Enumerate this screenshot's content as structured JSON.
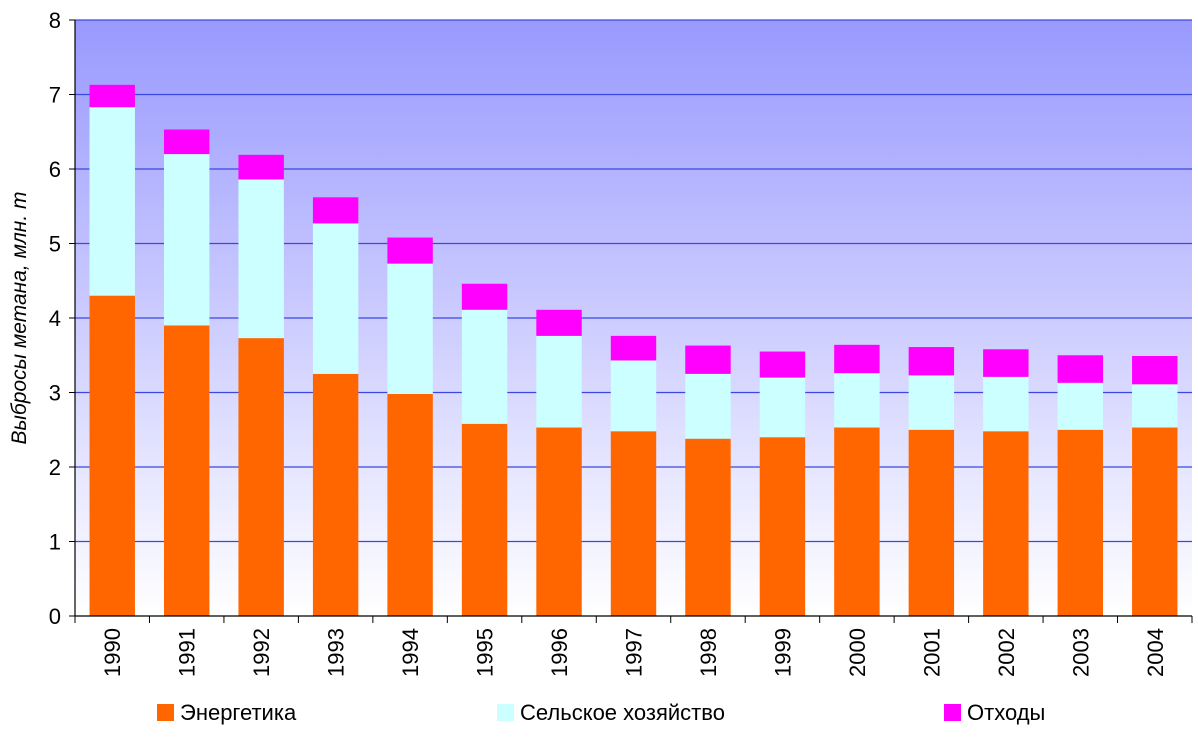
{
  "chart_data": {
    "type": "bar",
    "stacked": true,
    "categories": [
      "1990",
      "1991",
      "1992",
      "1993",
      "1994",
      "1995",
      "1996",
      "1997",
      "1998",
      "1999",
      "2000",
      "2001",
      "2002",
      "2003",
      "2004"
    ],
    "series": [
      {
        "name": "Энергетика",
        "color": "#ff6600",
        "values": [
          4.3,
          3.9,
          3.73,
          3.25,
          2.98,
          2.58,
          2.53,
          2.48,
          2.38,
          2.4,
          2.53,
          2.5,
          2.48,
          2.5,
          2.53
        ]
      },
      {
        "name": "Сельское хозяйство",
        "color": "#ccffff",
        "values": [
          2.53,
          2.3,
          2.13,
          2.02,
          1.75,
          1.53,
          1.23,
          0.95,
          0.87,
          0.8,
          0.73,
          0.73,
          0.73,
          0.63,
          0.58
        ]
      },
      {
        "name": "Отходы",
        "color": "#ff00ff",
        "values": [
          0.3,
          0.33,
          0.33,
          0.35,
          0.35,
          0.35,
          0.35,
          0.33,
          0.38,
          0.35,
          0.38,
          0.38,
          0.37,
          0.37,
          0.38
        ]
      }
    ],
    "ylabel": "Выбросы метана, млн. т",
    "xlabel": "",
    "ylim": [
      0,
      8
    ],
    "yticks": [
      0,
      1,
      2,
      3,
      4,
      5,
      6,
      7,
      8
    ],
    "grid": true,
    "legend_position": "bottom",
    "plot_background": {
      "top": "#9999ff",
      "bottom": "#ffffff"
    },
    "gridline_color": "#3b47e0"
  }
}
